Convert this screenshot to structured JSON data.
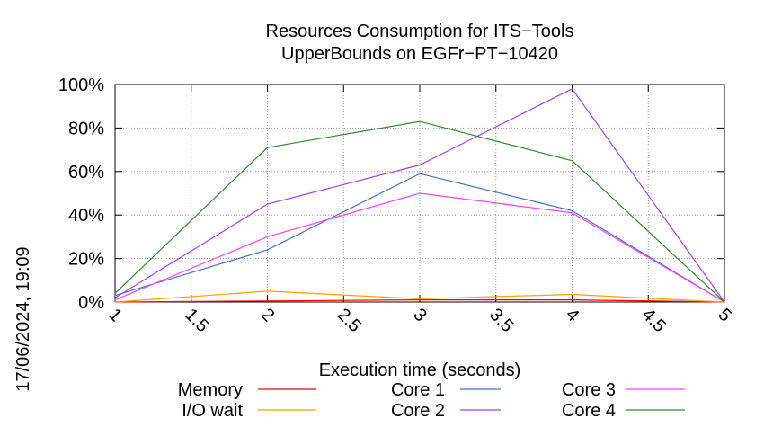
{
  "chart_data": {
    "type": "line",
    "title": [
      "Resources Consumption for ITS−Tools",
      "UpperBounds on EGFr−PT−10420"
    ],
    "xlabel": "Execution time (seconds)",
    "ylabel": "",
    "xlim": [
      1,
      5
    ],
    "ylim": [
      0,
      100
    ],
    "x_ticks": [
      "1",
      "1.5",
      "2",
      "2.5",
      "3",
      "3.5",
      "4",
      "4.5",
      "5"
    ],
    "y_ticks": [
      "0%",
      "20%",
      "40%",
      "60%",
      "80%",
      "100%"
    ],
    "grid": true,
    "legend_position": "bottom",
    "timestamp": "17/06/2024, 19:09",
    "series": [
      {
        "name": "Memory",
        "color": "#ff0000",
        "x": [
          1,
          2,
          3,
          4,
          5
        ],
        "y": [
          0,
          0.5,
          1,
          1,
          0
        ]
      },
      {
        "name": "I/O wait",
        "color": "#ffa000",
        "x": [
          1,
          2,
          3,
          4,
          5
        ],
        "y": [
          0,
          5,
          1.5,
          3.5,
          0
        ]
      },
      {
        "name": "Core 1",
        "color": "#4472c4",
        "x": [
          1,
          2,
          3,
          4,
          5
        ],
        "y": [
          3,
          24,
          59,
          42,
          0
        ]
      },
      {
        "name": "Core 2",
        "color": "#a040ff",
        "x": [
          1,
          2,
          3,
          4,
          5
        ],
        "y": [
          2,
          45,
          63,
          98,
          0
        ]
      },
      {
        "name": "Core 3",
        "color": "#ff40ff",
        "x": [
          1,
          2,
          3,
          4,
          5
        ],
        "y": [
          1,
          30,
          50,
          41,
          0
        ]
      },
      {
        "name": "Core 4",
        "color": "#2e8b2e",
        "x": [
          1,
          2,
          3,
          4,
          5
        ],
        "y": [
          4,
          71,
          83,
          65,
          0
        ]
      }
    ]
  }
}
